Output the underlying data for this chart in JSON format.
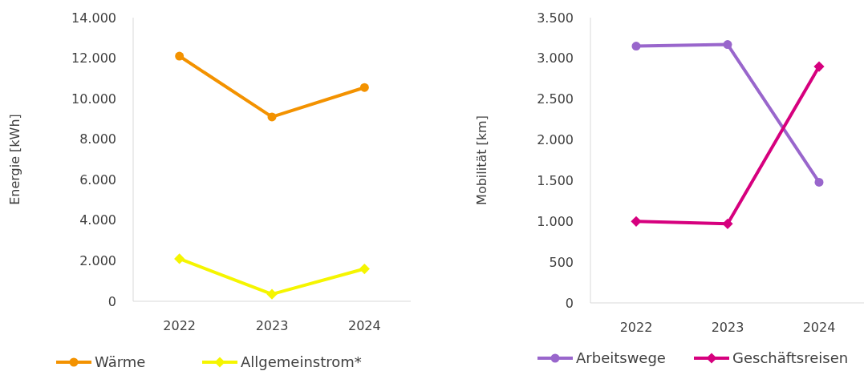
{
  "chart_data": [
    {
      "type": "line",
      "ylabel": "Energie [kWh]",
      "categories": [
        "2022",
        "2023",
        "2024"
      ],
      "ylim": [
        0,
        14000
      ],
      "yticks": [
        {
          "value": 0,
          "label": "0"
        },
        {
          "value": 2000,
          "label": "2.000"
        },
        {
          "value": 4000,
          "label": "4.000"
        },
        {
          "value": 6000,
          "label": "6.000"
        },
        {
          "value": 8000,
          "label": "8.000"
        },
        {
          "value": 10000,
          "label": "10.000"
        },
        {
          "value": 12000,
          "label": "12.000"
        },
        {
          "value": 14000,
          "label": "14.000"
        }
      ],
      "grid": false,
      "legend": "bottom",
      "line_style": "solid",
      "series": [
        {
          "name": "Wärme",
          "color": "#f39200",
          "marker": "circle",
          "values": [
            12100,
            9100,
            10550
          ]
        },
        {
          "name": "Allgemeinstrom*",
          "color": "#f5f500",
          "marker": "diamond",
          "values": [
            2100,
            350,
            1600
          ]
        }
      ]
    },
    {
      "type": "line",
      "ylabel": "Mobilität [km]",
      "categories": [
        "2022",
        "2023",
        "2024"
      ],
      "ylim": [
        0,
        3500
      ],
      "yticks": [
        {
          "value": 0,
          "label": "0"
        },
        {
          "value": 500,
          "label": "500"
        },
        {
          "value": 1000,
          "label": "1.000"
        },
        {
          "value": 1500,
          "label": "1.500"
        },
        {
          "value": 2000,
          "label": "2.000"
        },
        {
          "value": 2500,
          "label": "2.500"
        },
        {
          "value": 3000,
          "label": "3.000"
        },
        {
          "value": 3500,
          "label": "3.500"
        }
      ],
      "grid": false,
      "legend": "bottom",
      "line_style": "solid",
      "series": [
        {
          "name": "Arbeitswege",
          "color": "#9966cc",
          "marker": "circle",
          "values": [
            3150,
            3170,
            1480
          ]
        },
        {
          "name": "Geschäftsreisen",
          "color": "#d6007e",
          "marker": "diamond",
          "values": [
            1000,
            970,
            2900
          ]
        }
      ]
    }
  ]
}
